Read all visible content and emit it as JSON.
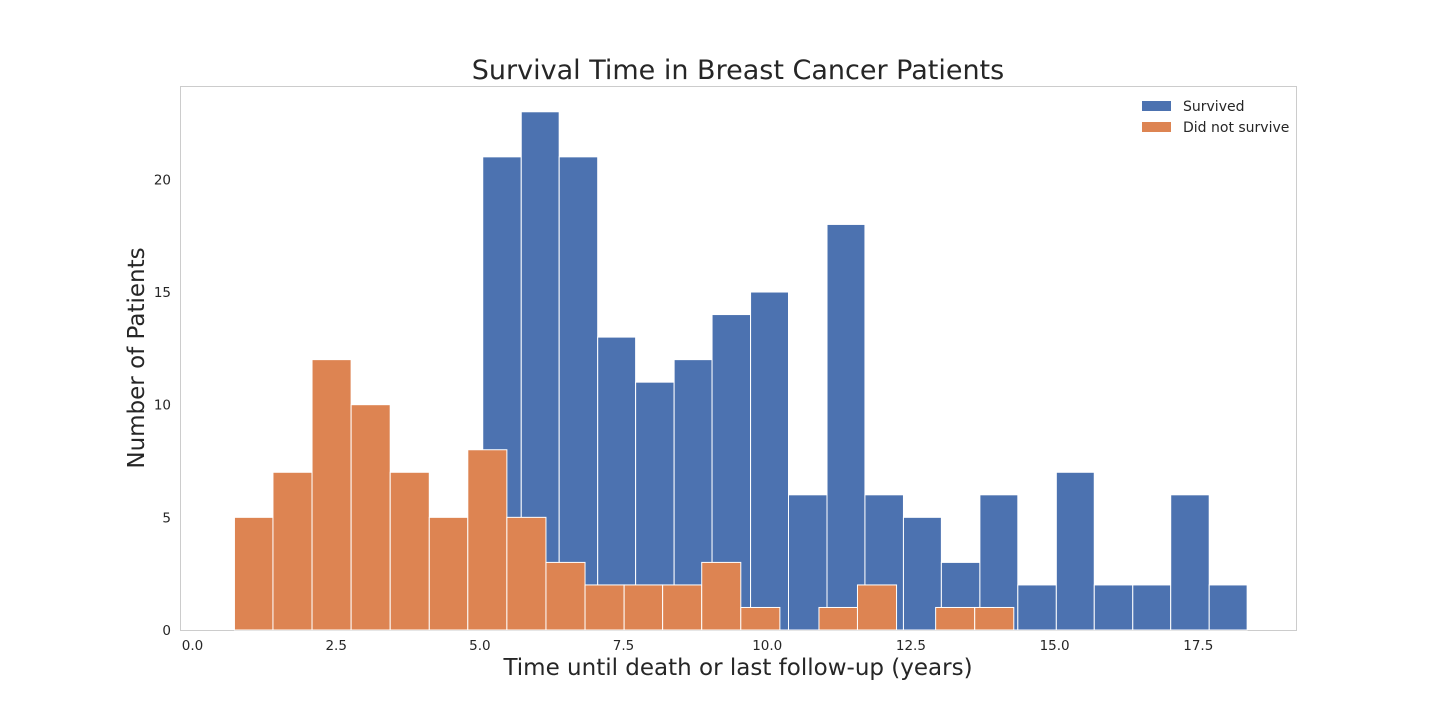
{
  "chart_data": {
    "type": "bar",
    "subtype": "overlaid-histogram",
    "title": "Survival Time in Breast Cancer Patients",
    "xlabel": "Time until death or last follow-up (years)",
    "ylabel": "Number of Patients",
    "xlim": [
      -0.2,
      19.2
    ],
    "ylim": [
      0,
      24.1
    ],
    "xticks": [
      "0.0",
      "2.5",
      "5.0",
      "7.5",
      "10.0",
      "12.5",
      "15.0",
      "17.5"
    ],
    "yticks": [
      "0",
      "5",
      "10",
      "15",
      "20"
    ],
    "grid": false,
    "legend_position": "top-right",
    "series": [
      {
        "name": "Survived",
        "color": "#4c72b0",
        "bins": [
          {
            "x0": 5.05,
            "x1": 5.72,
            "value": 21
          },
          {
            "x0": 5.72,
            "x1": 6.38,
            "value": 23
          },
          {
            "x0": 6.38,
            "x1": 7.05,
            "value": 21
          },
          {
            "x0": 7.05,
            "x1": 7.71,
            "value": 13
          },
          {
            "x0": 7.71,
            "x1": 8.38,
            "value": 11
          },
          {
            "x0": 8.38,
            "x1": 9.04,
            "value": 12
          },
          {
            "x0": 9.04,
            "x1": 9.71,
            "value": 14
          },
          {
            "x0": 9.71,
            "x1": 10.37,
            "value": 15
          },
          {
            "x0": 10.37,
            "x1": 11.04,
            "value": 6
          },
          {
            "x0": 11.04,
            "x1": 11.7,
            "value": 18
          },
          {
            "x0": 11.7,
            "x1": 12.37,
            "value": 6
          },
          {
            "x0": 12.37,
            "x1": 13.03,
            "value": 5
          },
          {
            "x0": 13.03,
            "x1": 13.7,
            "value": 3
          },
          {
            "x0": 13.7,
            "x1": 14.36,
            "value": 6
          },
          {
            "x0": 14.36,
            "x1": 15.03,
            "value": 2
          },
          {
            "x0": 15.03,
            "x1": 15.69,
            "value": 7
          },
          {
            "x0": 15.69,
            "x1": 16.36,
            "value": 2
          },
          {
            "x0": 16.36,
            "x1": 17.02,
            "value": 2
          },
          {
            "x0": 17.02,
            "x1": 17.69,
            "value": 6
          },
          {
            "x0": 17.69,
            "x1": 18.35,
            "value": 2
          }
        ]
      },
      {
        "name": "Did not survive",
        "color": "#dd8452",
        "bins": [
          {
            "x0": 0.73,
            "x1": 1.4,
            "value": 5
          },
          {
            "x0": 1.4,
            "x1": 2.08,
            "value": 7
          },
          {
            "x0": 2.08,
            "x1": 2.76,
            "value": 12
          },
          {
            "x0": 2.76,
            "x1": 3.44,
            "value": 10
          },
          {
            "x0": 3.44,
            "x1": 4.12,
            "value": 7
          },
          {
            "x0": 4.12,
            "x1": 4.79,
            "value": 5
          },
          {
            "x0": 4.79,
            "x1": 5.47,
            "value": 8
          },
          {
            "x0": 5.47,
            "x1": 6.15,
            "value": 5
          },
          {
            "x0": 6.15,
            "x1": 6.83,
            "value": 3
          },
          {
            "x0": 6.83,
            "x1": 7.51,
            "value": 2
          },
          {
            "x0": 7.51,
            "x1": 8.18,
            "value": 2
          },
          {
            "x0": 8.18,
            "x1": 8.86,
            "value": 2
          },
          {
            "x0": 8.86,
            "x1": 9.54,
            "value": 3
          },
          {
            "x0": 9.54,
            "x1": 10.22,
            "value": 1
          },
          {
            "x0": 10.22,
            "x1": 10.9,
            "value": 0
          },
          {
            "x0": 10.9,
            "x1": 11.57,
            "value": 1
          },
          {
            "x0": 11.57,
            "x1": 12.25,
            "value": 2
          },
          {
            "x0": 12.25,
            "x1": 12.93,
            "value": 0
          },
          {
            "x0": 12.93,
            "x1": 13.61,
            "value": 1
          },
          {
            "x0": 13.61,
            "x1": 14.29,
            "value": 1
          }
        ]
      }
    ]
  }
}
